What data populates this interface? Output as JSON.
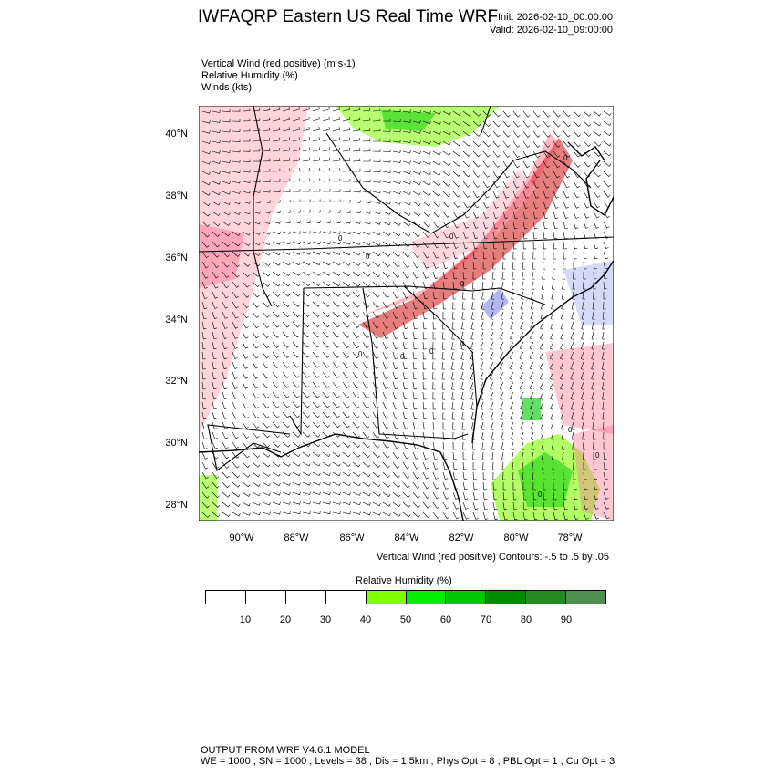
{
  "header": {
    "title": "IWFAQRP Eastern US Real Time WRF",
    "init": "Init: 2026-02-10_00:00:00",
    "valid": "Valid: 2026-02-10_09:00:00"
  },
  "fields": [
    "Vertical Wind (red positive)   (m s-1)",
    "Relative Humidity   (%)",
    "Winds   (kts)"
  ],
  "map": {
    "lat_labels": [
      "40°N",
      "38°N",
      "36°N",
      "34°N",
      "32°N",
      "30°N",
      "28°N"
    ],
    "lon_labels": [
      "90°W",
      "88°W",
      "86°W",
      "84°W",
      "82°W",
      "80°W",
      "78°W"
    ],
    "contour_label": "0",
    "colors": {
      "updraft": "#cc0000",
      "downdraft": "#2233cc",
      "wind_barb": "#000000",
      "humidity_low": "#7fff00",
      "humidity_high": "#2e8b2e"
    }
  },
  "contour_note": "Vertical Wind (red positive) Contours: -.5 to .5 by .05",
  "legend": {
    "title": "Relative Humidity  (%)",
    "ticks": [
      "10",
      "20",
      "30",
      "40",
      "50",
      "60",
      "70",
      "80",
      "90"
    ],
    "colors": [
      "#ffffff",
      "#ffffff",
      "#ffffff",
      "#ffffff",
      "#7fff00",
      "#00ee00",
      "#00c800",
      "#008b00",
      "#228b22",
      "#4f8f4f"
    ]
  },
  "footer": {
    "line1": "OUTPUT FROM WRF V4.6.1 MODEL",
    "line2": "WE = 1000 ; SN = 1000 ; Levels = 38 ; Dis = 1.5km ; Phys Opt = 8 ; PBL Opt = 1 ; Cu Opt = 3"
  }
}
